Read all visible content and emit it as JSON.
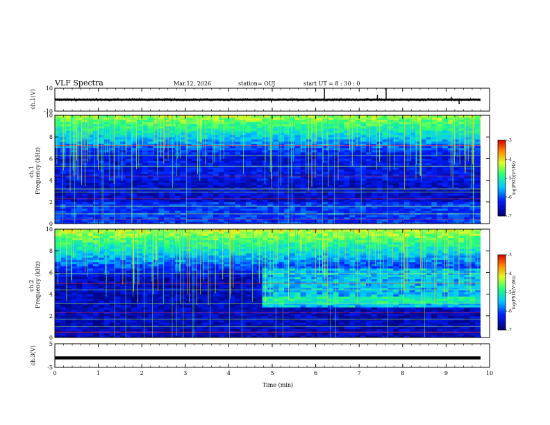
{
  "header": {
    "title": "VLF Spectra",
    "date": "Mar.12, 2026",
    "station": "station= OUJ",
    "start": "start  UT =  8 : 30 : 0"
  },
  "chart_data": [
    {
      "type": "line",
      "name": "ch1-waveform",
      "ylabel": "ch.1(V)",
      "ylim": [
        -10,
        10
      ],
      "yticks": [
        "10",
        "-10"
      ],
      "baseline": 0,
      "spikes": [
        {
          "x": 4.98,
          "y": -2.5
        },
        {
          "x": 6.2,
          "y": 10
        },
        {
          "x": 7.42,
          "y": 4
        },
        {
          "x": 7.62,
          "y": 10
        },
        {
          "x": 9.12,
          "y": 2.5
        },
        {
          "x": 9.3,
          "y": -4
        }
      ]
    },
    {
      "type": "heatmap",
      "name": "ch1-spectrogram",
      "ylabel": "ch.1\nFrequency (kHz)",
      "ylim": [
        0,
        10
      ],
      "yticks": [
        "0",
        "2",
        "4",
        "6",
        "8",
        "10"
      ],
      "colorbar": {
        "label": "log(PSD)(V²/Hz)",
        "range": [
          -7,
          -3
        ],
        "ticks": [
          "-3",
          "-4",
          "-5",
          "-6",
          "-7"
        ]
      }
    },
    {
      "type": "heatmap",
      "name": "ch2-spectrogram",
      "ylabel": "ch.2\nFrequency (kHz)",
      "ylim": [
        0,
        10
      ],
      "yticks": [
        "0",
        "2",
        "4",
        "6",
        "8",
        "10"
      ],
      "change_at_min": 4.8,
      "colorbar": {
        "label": "log(PSD)(V²/Hz)",
        "range": [
          -7,
          -3
        ],
        "ticks": [
          "-3",
          "-4",
          "-5",
          "-6",
          "-7"
        ]
      }
    },
    {
      "type": "line",
      "name": "ch3-waveform",
      "ylabel": "ch.3(V)",
      "ylim": [
        -5,
        5
      ],
      "yticks": [
        "5",
        "-5"
      ],
      "baseline": -1
    }
  ],
  "xaxis": {
    "label": "Time  (min)",
    "xlim": [
      0,
      10
    ],
    "ticks": [
      "0",
      "1",
      "2",
      "3",
      "4",
      "5",
      "6",
      "7",
      "8",
      "9",
      "10"
    ]
  },
  "colors": {
    "low": "#000070",
    "mid": "#20e8ff",
    "high": "#ffff40",
    "peak": "#e00000"
  }
}
